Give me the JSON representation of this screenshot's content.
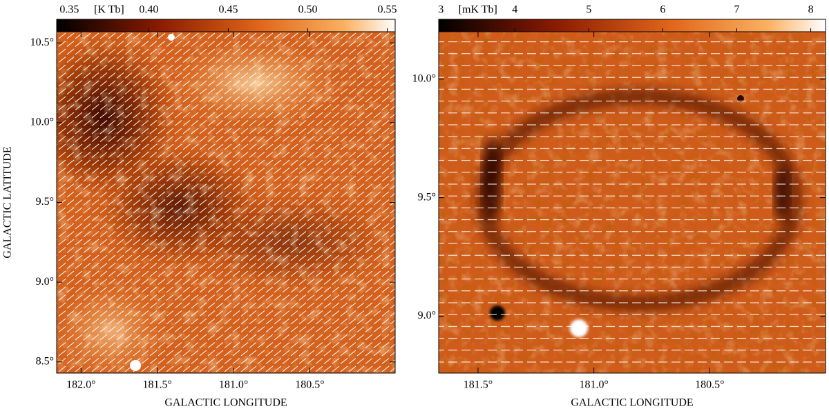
{
  "chart_data": [
    {
      "type": "image",
      "colorbar": {
        "label": "[K Tb]",
        "lim": [
          0.342,
          0.555
        ],
        "ticks": [
          0.35,
          {
            "value": 0.4,
            "label": "0.40"
          },
          0.45,
          {
            "value": 0.5,
            "label": "0.50"
          },
          0.55
        ]
      },
      "xlabel": "GALACTIC LONGITUDE",
      "ylabel": "GALACTIC LATITUDE",
      "xlim": [
        182.16,
        179.94
      ],
      "xticks": [
        {
          "value": 182,
          "label": "182.0°"
        },
        {
          "value": 181.5,
          "label": "181.5°"
        },
        {
          "value": 181,
          "label": "181.0°"
        },
        {
          "value": 180.5,
          "label": "180.5°"
        }
      ],
      "ylim": [
        8.43,
        10.57
      ],
      "yticks": [
        {
          "value": 10.5,
          "label": "10.5°"
        },
        {
          "value": 10,
          "label": "10.0°"
        },
        {
          "value": 9.5,
          "label": "9.5°"
        },
        {
          "value": 9,
          "label": "9.0°"
        },
        {
          "value": 8.5,
          "label": "8.5°"
        }
      ]
    },
    {
      "type": "image",
      "colorbar": {
        "label": "[mK Tb]",
        "lim": [
          2.97,
          8.2
        ],
        "ticks": [
          3,
          4,
          5,
          6,
          7,
          8
        ]
      },
      "xlabel": "GALACTIC LONGITUDE",
      "xlim": [
        181.67,
        180.0
      ],
      "xticks": [
        {
          "value": 181.5,
          "label": "181.5°"
        },
        {
          "value": 181,
          "label": "181.0°"
        },
        {
          "value": 180.5,
          "label": "180.5°"
        }
      ],
      "ylim": [
        8.76,
        10.2
      ],
      "yticks": [
        {
          "value": 10,
          "label": "10.0°"
        },
        {
          "value": 9.5,
          "label": "9.5°"
        },
        {
          "value": 9,
          "label": "9.0°"
        }
      ]
    }
  ]
}
